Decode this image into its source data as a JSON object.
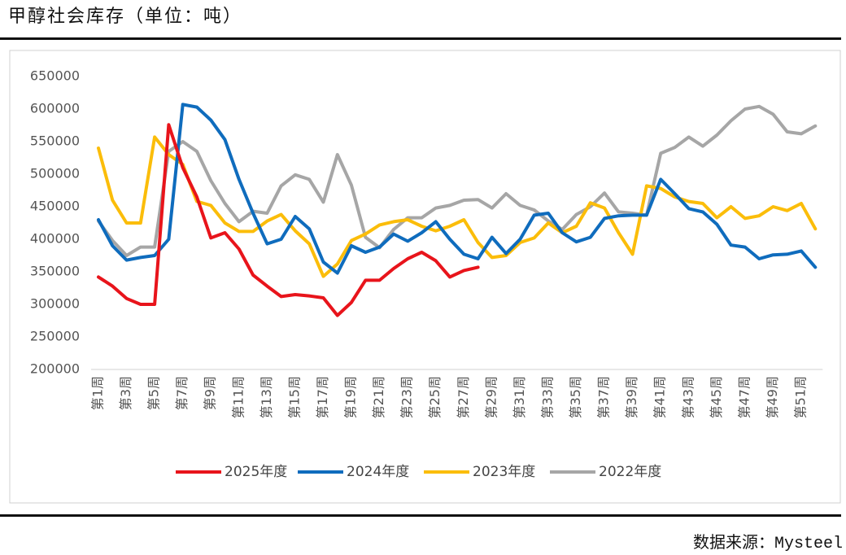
{
  "title": "甲醇社会库存（单位：吨）",
  "source": "数据来源：Mysteel",
  "chart_data": {
    "type": "line",
    "categories": [
      "第1周",
      null,
      "第3周",
      null,
      "第5周",
      null,
      "第7周",
      null,
      "第9周",
      null,
      "第11周",
      null,
      "第13周",
      null,
      "第15周",
      null,
      "第17周",
      null,
      "第19周",
      null,
      "第21周",
      null,
      "第23周",
      null,
      "第25周",
      null,
      "第27周",
      null,
      "第29周",
      null,
      "第31周",
      null,
      "第33周",
      null,
      "第35周",
      null,
      "第37周",
      null,
      "第39周",
      null,
      "第41周",
      null,
      "第43周",
      null,
      "第45周",
      null,
      "第47周",
      null,
      "第49周",
      null,
      "第51周",
      null
    ],
    "ylim": [
      200000,
      650000
    ],
    "yticks": [
      200000,
      250000,
      300000,
      350000,
      400000,
      450000,
      500000,
      550000,
      600000,
      650000
    ],
    "legend": "bottom",
    "series": [
      {
        "name": "2025年度",
        "color": "#e8141b",
        "values": [
          342000,
          328000,
          309000,
          300000,
          300000,
          576000,
          510000,
          465000,
          402000,
          410000,
          385000,
          345000,
          328000,
          312000,
          315000,
          313000,
          310000,
          283000,
          303000,
          337000,
          337000,
          355000,
          370000,
          380000,
          367000,
          342000,
          352000,
          357000,
          null,
          null,
          null,
          null,
          null,
          null,
          null,
          null,
          null,
          null,
          null,
          null,
          null,
          null,
          null,
          null,
          null,
          null,
          null,
          null,
          null,
          null,
          null,
          null
        ]
      },
      {
        "name": "2024年度",
        "color": "#0f6cbd",
        "values": [
          430000,
          390000,
          368000,
          372000,
          375000,
          400000,
          607000,
          603000,
          583000,
          553000,
          492000,
          440000,
          393000,
          400000,
          435000,
          416000,
          365000,
          348000,
          390000,
          380000,
          388000,
          408000,
          397000,
          410000,
          427000,
          400000,
          377000,
          370000,
          403000,
          378000,
          400000,
          437000,
          440000,
          410000,
          396000,
          403000,
          432000,
          436000,
          437000,
          437000,
          492000,
          470000,
          447000,
          442000,
          423000,
          391000,
          388000,
          370000,
          376000,
          377000,
          382000,
          357000
        ]
      },
      {
        "name": "2023年度",
        "color": "#fbbd0a",
        "values": [
          540000,
          460000,
          425000,
          425000,
          557000,
          530000,
          515000,
          458000,
          452000,
          425000,
          412000,
          412000,
          428000,
          438000,
          413000,
          393000,
          343000,
          362000,
          398000,
          408000,
          422000,
          427000,
          430000,
          420000,
          413000,
          420000,
          430000,
          395000,
          372000,
          375000,
          395000,
          402000,
          425000,
          410000,
          420000,
          456000,
          448000,
          410000,
          377000,
          482000,
          478000,
          465000,
          458000,
          455000,
          433000,
          450000,
          432000,
          436000,
          450000,
          444000,
          455000,
          416000
        ]
      },
      {
        "name": "2022年度",
        "color": "#a6a6a6",
        "values": [
          428000,
          398000,
          375000,
          388000,
          388000,
          535000,
          550000,
          535000,
          490000,
          455000,
          427000,
          443000,
          440000,
          482000,
          499000,
          492000,
          457000,
          530000,
          483000,
          403000,
          387000,
          415000,
          433000,
          433000,
          448000,
          452000,
          460000,
          461000,
          448000,
          470000,
          452000,
          445000,
          428000,
          415000,
          438000,
          450000,
          471000,
          442000,
          440000,
          437000,
          532000,
          541000,
          557000,
          543000,
          560000,
          582000,
          600000,
          604000,
          592000,
          565000,
          562000,
          574000
        ]
      }
    ]
  }
}
